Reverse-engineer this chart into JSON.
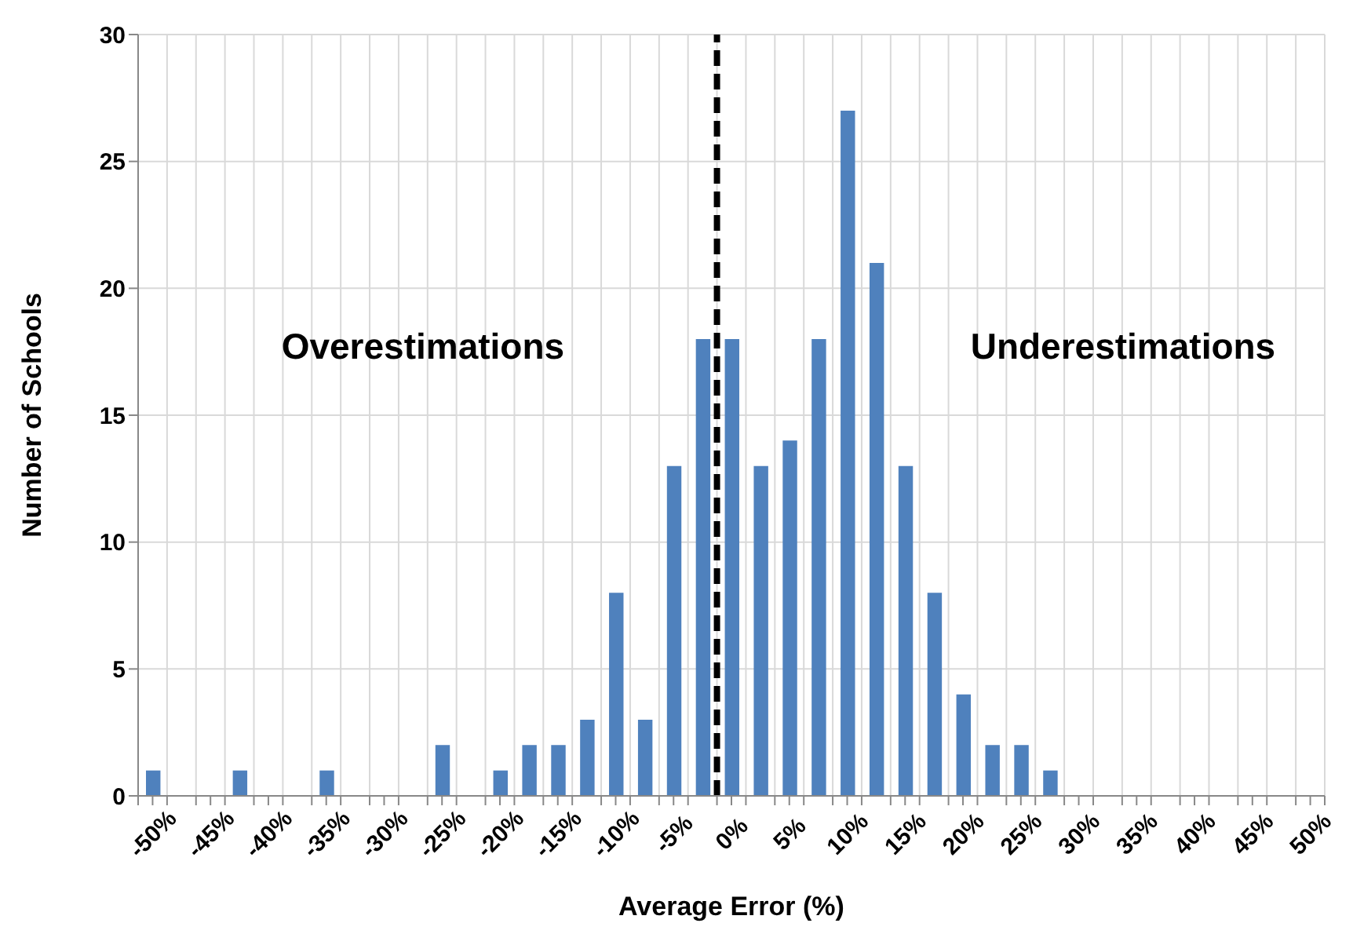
{
  "chart_data": {
    "type": "bar",
    "xlabel": "Average Error (%)",
    "ylabel": "Number of Schools",
    "x": [
      -50,
      -47.5,
      -45,
      -42.5,
      -40,
      -37.5,
      -35,
      -32.5,
      -30,
      -27.5,
      -25,
      -22.5,
      -20,
      -17.5,
      -15,
      -12.5,
      -10,
      -7.5,
      -5,
      -2.5,
      0,
      2.5,
      5,
      7.5,
      10,
      12.5,
      15,
      17.5,
      20,
      22.5,
      25,
      27.5,
      30,
      32.5,
      35,
      37.5,
      40,
      42.5,
      45,
      47.5,
      50
    ],
    "values": [
      1,
      0,
      0,
      1,
      0,
      0,
      1,
      0,
      0,
      0,
      2,
      0,
      1,
      2,
      2,
      3,
      8,
      3,
      13,
      18,
      18,
      13,
      14,
      18,
      27,
      21,
      13,
      8,
      4,
      2,
      2,
      1,
      0,
      0,
      0,
      0,
      0,
      0,
      0,
      0,
      0
    ],
    "color": "#4f81bd",
    "xlim": [
      -51.25,
      51.25
    ],
    "xticks": [
      {
        "value": -51.25,
        "label": null
      },
      {
        "value": -50,
        "label": "-50%"
      },
      {
        "value": -48.75,
        "label": null
      },
      {
        "value": -46.25,
        "label": null
      },
      {
        "value": -45,
        "label": "-45%"
      },
      {
        "value": -43.75,
        "label": null
      },
      {
        "value": -41.25,
        "label": null
      },
      {
        "value": -40,
        "label": "-40%"
      },
      {
        "value": -38.75,
        "label": null
      },
      {
        "value": -36.25,
        "label": null
      },
      {
        "value": -35,
        "label": "-35%"
      },
      {
        "value": -33.75,
        "label": null
      },
      {
        "value": -31.25,
        "label": null
      },
      {
        "value": -30,
        "label": "-30%"
      },
      {
        "value": -28.75,
        "label": null
      },
      {
        "value": -26.25,
        "label": null
      },
      {
        "value": -25,
        "label": "-25%"
      },
      {
        "value": -23.75,
        "label": null
      },
      {
        "value": -21.25,
        "label": null
      },
      {
        "value": -20,
        "label": "-20%"
      },
      {
        "value": -18.75,
        "label": null
      },
      {
        "value": -16.25,
        "label": null
      },
      {
        "value": -15,
        "label": "-15%"
      },
      {
        "value": -13.75,
        "label": null
      },
      {
        "value": -11.25,
        "label": null
      },
      {
        "value": -10,
        "label": "-10%"
      },
      {
        "value": -8.75,
        "label": null
      },
      {
        "value": -6.25,
        "label": null
      },
      {
        "value": -5,
        "label": "-5%"
      },
      {
        "value": -3.75,
        "label": null
      },
      {
        "value": -1.25,
        "label": null
      },
      {
        "value": 0,
        "label": "0%"
      },
      {
        "value": 1.25,
        "label": null
      },
      {
        "value": 3.75,
        "label": null
      },
      {
        "value": 5,
        "label": "5%"
      },
      {
        "value": 6.25,
        "label": null
      },
      {
        "value": 8.75,
        "label": null
      },
      {
        "value": 10,
        "label": "10%"
      },
      {
        "value": 11.25,
        "label": null
      },
      {
        "value": 13.75,
        "label": null
      },
      {
        "value": 15,
        "label": "15%"
      },
      {
        "value": 16.25,
        "label": null
      },
      {
        "value": 18.75,
        "label": null
      },
      {
        "value": 20,
        "label": "20%"
      },
      {
        "value": 21.25,
        "label": null
      },
      {
        "value": 23.75,
        "label": null
      },
      {
        "value": 25,
        "label": "25%"
      },
      {
        "value": 26.25,
        "label": null
      },
      {
        "value": 28.75,
        "label": null
      },
      {
        "value": 30,
        "label": "30%"
      },
      {
        "value": 31.25,
        "label": null
      },
      {
        "value": 33.75,
        "label": null
      },
      {
        "value": 35,
        "label": "35%"
      },
      {
        "value": 36.25,
        "label": null
      },
      {
        "value": 38.75,
        "label": null
      },
      {
        "value": 40,
        "label": "40%"
      },
      {
        "value": 41.25,
        "label": null
      },
      {
        "value": 43.75,
        "label": null
      },
      {
        "value": 45,
        "label": "45%"
      },
      {
        "value": 46.25,
        "label": null
      },
      {
        "value": 48.75,
        "label": null
      },
      {
        "value": 50,
        "label": "50%"
      },
      {
        "value": 51.25,
        "label": null
      }
    ],
    "ylim": [
      0,
      30
    ],
    "yticks": [
      0,
      5,
      10,
      15,
      20,
      25,
      30
    ],
    "grid": true,
    "ref_lines": [
      {
        "axis": "x",
        "value": -1.25,
        "color": "#000000",
        "line_style": "dashed"
      }
    ],
    "annotations": [
      "Overestimations",
      "Underestimations"
    ]
  }
}
